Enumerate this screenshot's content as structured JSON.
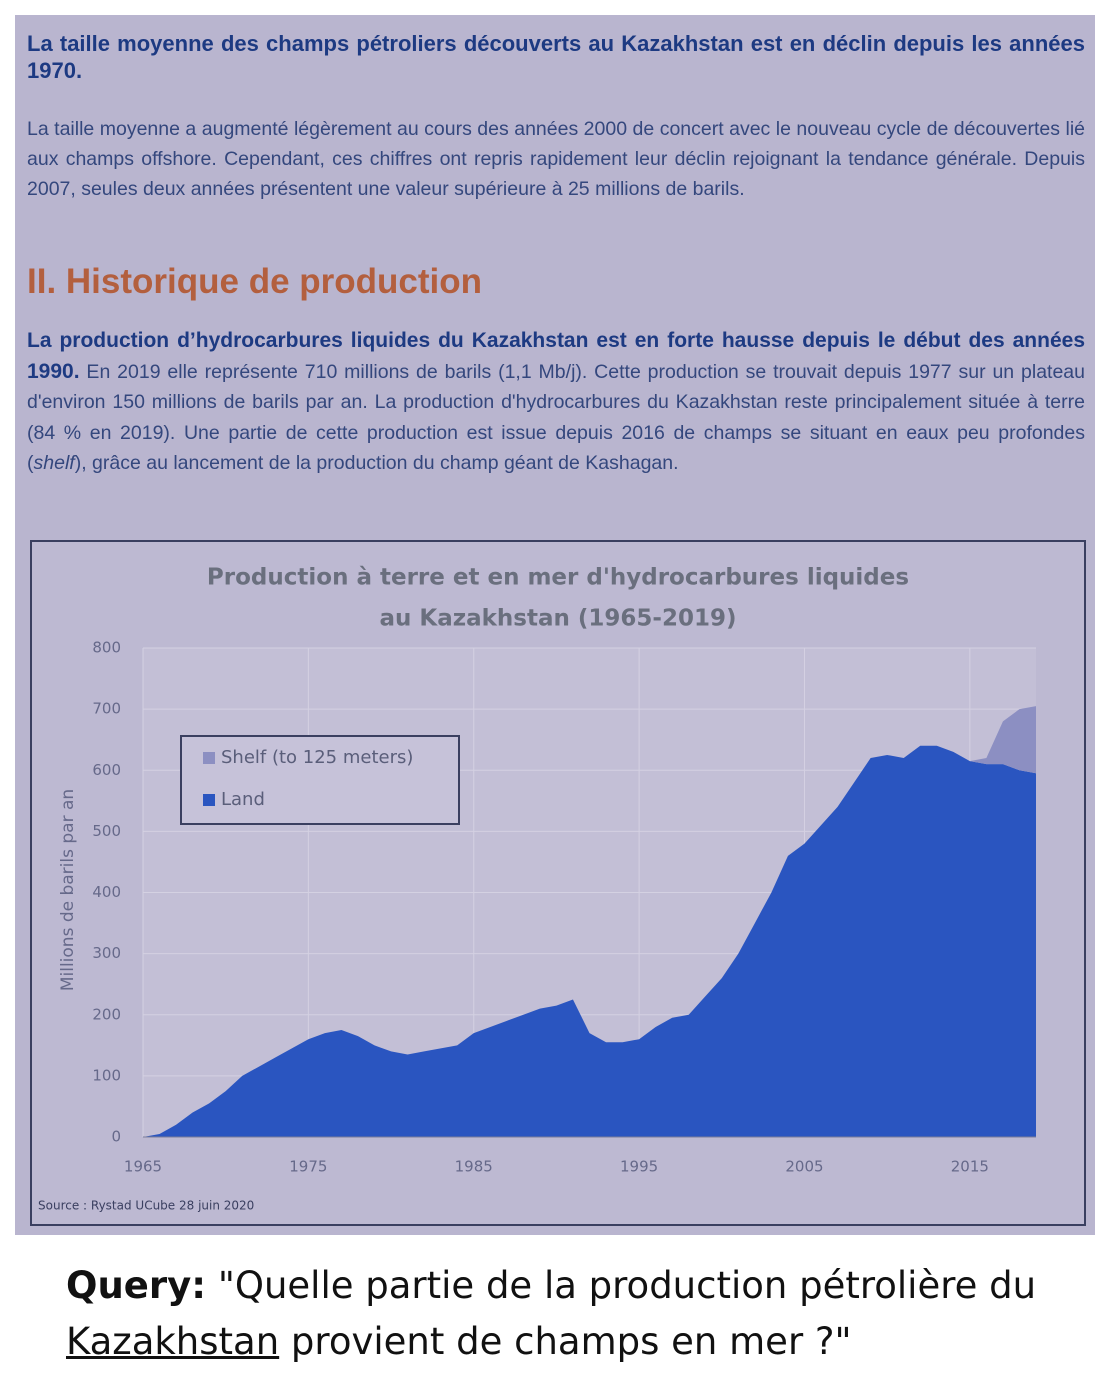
{
  "section1": {
    "heading": "La taille moyenne des champs pétroliers découverts au Kazakhstan est en déclin depuis les années 1970.",
    "paragraph": "La taille moyenne a augmenté légèrement au cours des années 2000 de concert avec le nouveau cycle de découvertes lié aux champs offshore. Cependant, ces chiffres ont repris rapidement leur déclin rejoignant la tendance générale. Depuis 2007, seules deux années présentent une valeur supérieure à 25 millions de barils."
  },
  "section2": {
    "heading": "II. Historique de production",
    "lead": "La production d’hydrocarbures liquides du Kazakhstan est en forte hausse depuis le début des années 1990.",
    "text_before": " En 2019 elle représente 710 millions de barils (1,1 Mb/j). Cette production se trouvait depuis 1977 sur un plateau d'environ 150 millions de barils par an. La production d'hydrocarbures du Kazakhstan reste principalement située à terre (84 % en 2019). Une partie de cette production est issue depuis 2016 de champs se situant en eaux peu profondes (",
    "italic": "shelf",
    "text_after": "), grâce au lancement de la production du champ géant de Kashagan."
  },
  "chart_data": {
    "type": "stacked_area",
    "title": [
      "Production à terre et en mer d'hydrocarbures liquides",
      "au Kazakhstan  (1965-2019)"
    ],
    "y_label": "Millions de barils par an",
    "source": "Source : Rystad UCube 28 juin 2020",
    "x": [
      1965,
      1966,
      1967,
      1968,
      1969,
      1970,
      1971,
      1972,
      1973,
      1974,
      1975,
      1976,
      1977,
      1978,
      1979,
      1980,
      1981,
      1982,
      1983,
      1984,
      1985,
      1986,
      1987,
      1988,
      1989,
      1990,
      1991,
      1992,
      1993,
      1994,
      1995,
      1996,
      1997,
      1998,
      1999,
      2000,
      2001,
      2002,
      2003,
      2004,
      2005,
      2006,
      2007,
      2008,
      2009,
      2010,
      2011,
      2012,
      2013,
      2014,
      2015,
      2016,
      2017,
      2018,
      2019
    ],
    "series": [
      {
        "name": "Land",
        "color": "#2a55c0",
        "values": [
          0,
          5,
          20,
          40,
          55,
          75,
          100,
          115,
          130,
          145,
          160,
          170,
          175,
          165,
          150,
          140,
          135,
          140,
          145,
          150,
          170,
          180,
          190,
          200,
          210,
          215,
          225,
          170,
          155,
          155,
          160,
          180,
          195,
          200,
          230,
          260,
          300,
          350,
          400,
          460,
          480,
          510,
          540,
          580,
          620,
          625,
          620,
          640,
          640,
          630,
          615,
          610,
          610,
          600,
          595
        ]
      },
      {
        "name": "Shelf (to 125 meters)",
        "color": "#8c8fc2",
        "values": [
          0,
          0,
          0,
          0,
          0,
          0,
          0,
          0,
          0,
          0,
          0,
          0,
          0,
          0,
          0,
          0,
          0,
          0,
          0,
          0,
          0,
          0,
          0,
          0,
          0,
          0,
          0,
          0,
          0,
          0,
          0,
          0,
          0,
          0,
          0,
          0,
          0,
          0,
          0,
          0,
          0,
          0,
          0,
          0,
          0,
          0,
          0,
          0,
          0,
          0,
          0,
          10,
          70,
          100,
          110
        ]
      }
    ],
    "xlim": [
      1965,
      2019
    ],
    "xticks": [
      1965,
      1975,
      1985,
      1995,
      2005,
      2015
    ],
    "ylim": [
      0,
      800
    ],
    "yticks": [
      0,
      100,
      200,
      300,
      400,
      500,
      600,
      700,
      800
    ],
    "grid": true
  },
  "query": {
    "label": "Query:",
    "text_before": " \"Quelle partie de la production pétrolière du ",
    "underlined": "Kazakhstan",
    "text_after": " provient de champs en mer ?\""
  }
}
